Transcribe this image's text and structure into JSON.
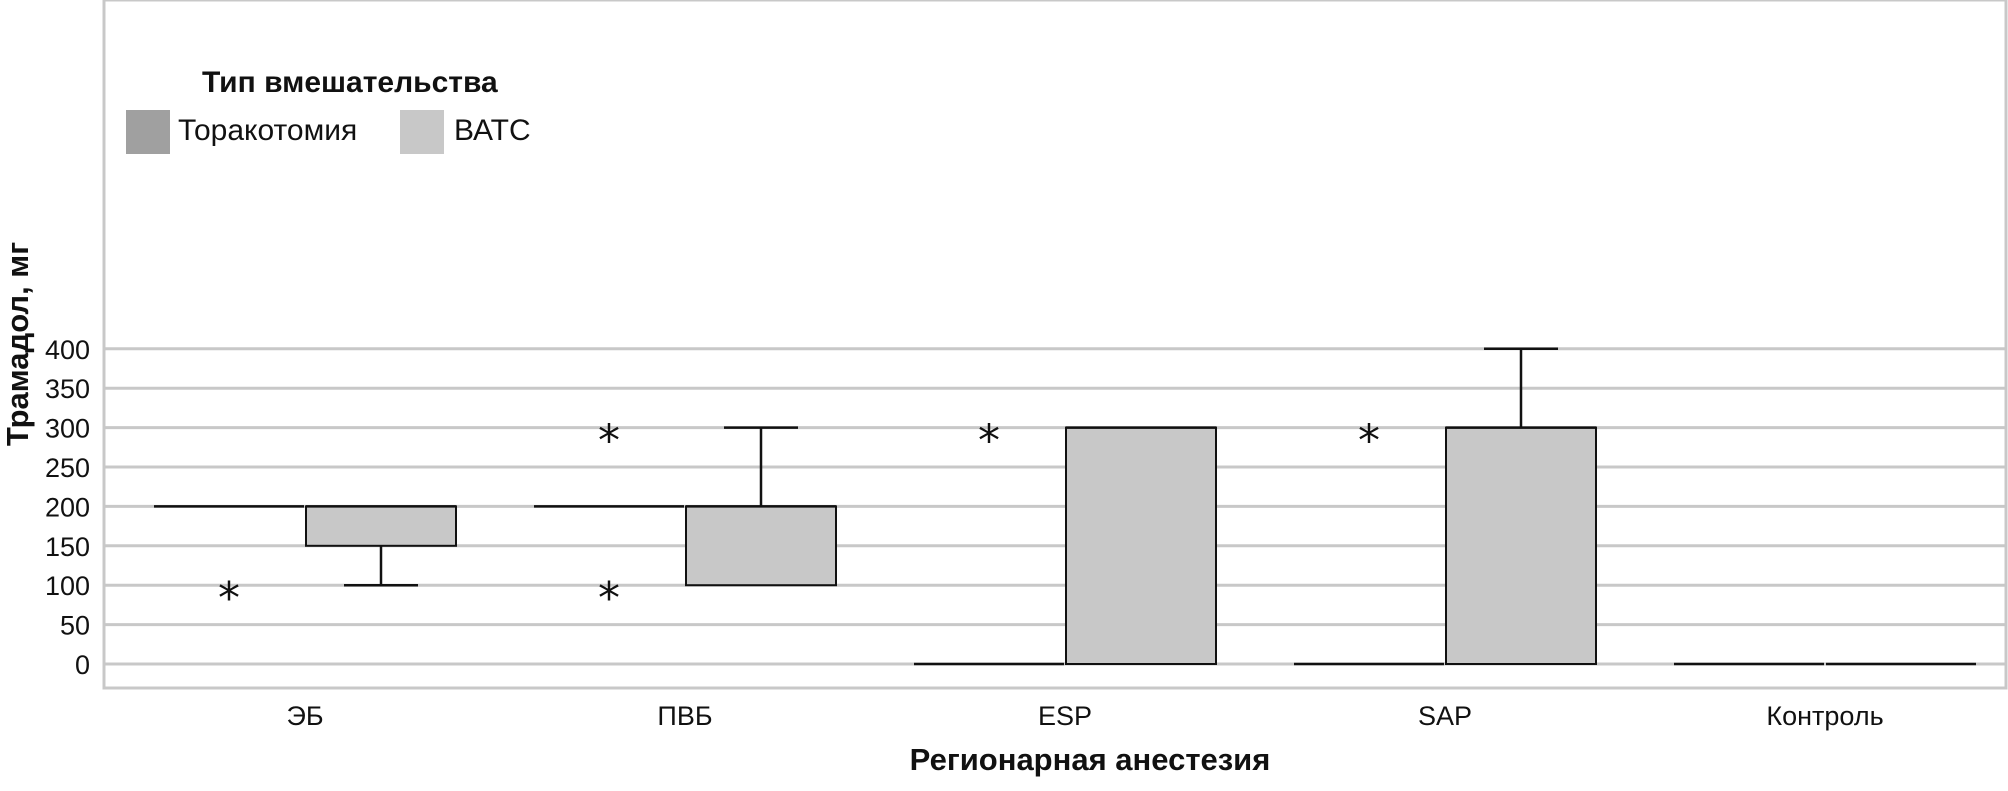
{
  "chart_data": {
    "type": "boxplot",
    "ylabel": "Трамадол, мг",
    "xlabel": "Регионарная анестезия",
    "ylim": [
      -15,
      415
    ],
    "yticks": [
      0,
      50,
      100,
      150,
      200,
      250,
      300,
      350,
      400
    ],
    "grid": true,
    "legend": {
      "title": "Тип вмешательства",
      "placement": "top-left",
      "entries": [
        {
          "name": "Торакотомия",
          "color": "#a0a0a0"
        },
        {
          "name": "ВАТС",
          "color": "#c8c8c8"
        }
      ]
    },
    "categories": [
      "ЭБ",
      "ПВБ",
      "ESP",
      "SAP",
      "Контроль"
    ],
    "series": [
      {
        "name": "Торакотомия",
        "color": "#a0a0a0",
        "boxes": [
          {
            "category": "ЭБ",
            "whisker_low": 200,
            "q1": 200,
            "median": 200,
            "q3": 200,
            "whisker_high": 200,
            "outliers": [
              100
            ]
          },
          {
            "category": "ПВБ",
            "whisker_low": 200,
            "q1": 200,
            "median": 200,
            "q3": 200,
            "whisker_high": 200,
            "outliers": [
              300,
              100
            ]
          },
          {
            "category": "ESP",
            "whisker_low": 0,
            "q1": 0,
            "median": 0,
            "q3": 0,
            "whisker_high": 0,
            "outliers": [
              300
            ]
          },
          {
            "category": "SAP",
            "whisker_low": 0,
            "q1": 0,
            "median": 0,
            "q3": 0,
            "whisker_high": 0,
            "outliers": [
              300
            ]
          },
          {
            "category": "Контроль",
            "whisker_low": 0,
            "q1": 0,
            "median": 0,
            "q3": 0,
            "whisker_high": 0,
            "outliers": []
          }
        ]
      },
      {
        "name": "ВАТС",
        "color": "#c8c8c8",
        "boxes": [
          {
            "category": "ЭБ",
            "whisker_low": 100,
            "q1": 150,
            "median": 200,
            "q3": 200,
            "whisker_high": 200,
            "outliers": []
          },
          {
            "category": "ПВБ",
            "whisker_low": 100,
            "q1": 100,
            "median": 200,
            "q3": 200,
            "whisker_high": 300,
            "outliers": []
          },
          {
            "category": "ESP",
            "whisker_low": 0,
            "q1": 0,
            "median": 300,
            "q3": 300,
            "whisker_high": 300,
            "outliers": []
          },
          {
            "category": "SAP",
            "whisker_low": 0,
            "q1": 0,
            "median": 300,
            "q3": 300,
            "whisker_high": 400,
            "outliers": []
          },
          {
            "category": "Контроль",
            "whisker_low": 0,
            "q1": 0,
            "median": 0,
            "q3": 0,
            "whisker_high": 0,
            "outliers": []
          }
        ]
      }
    ]
  }
}
